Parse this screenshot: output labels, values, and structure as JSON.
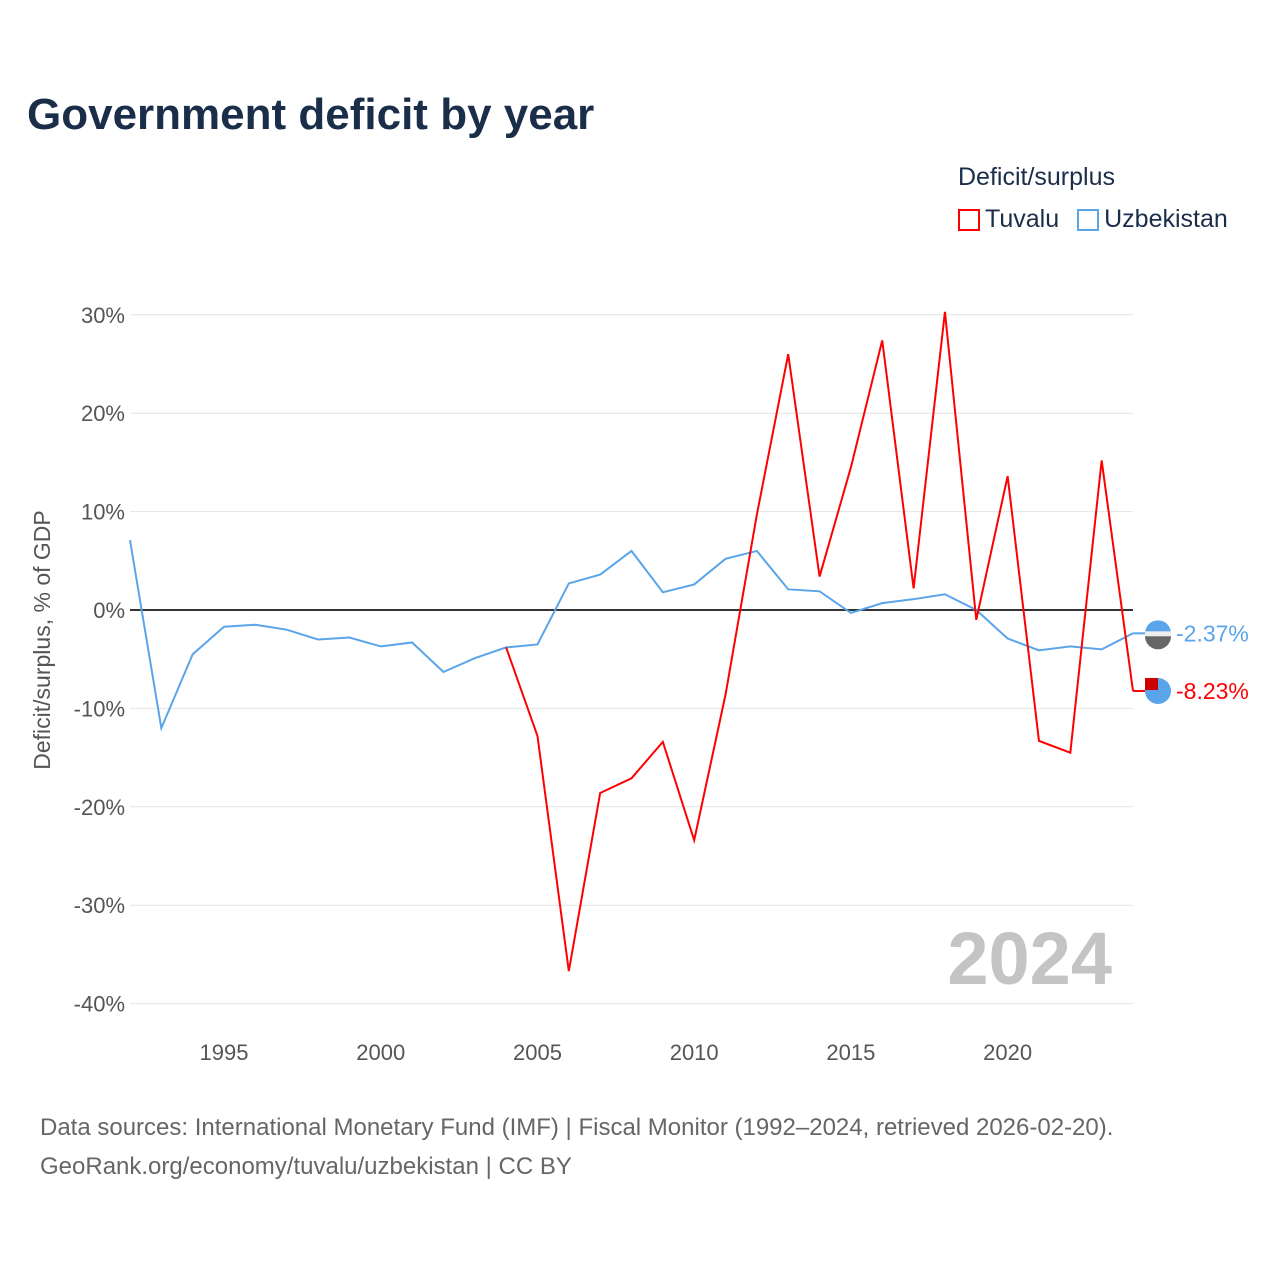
{
  "title": "Government deficit by year",
  "legend": {
    "title": "Deficit/surplus",
    "items": [
      {
        "label": "Tuvalu",
        "color": "#ff0000"
      },
      {
        "label": "Uzbekistan",
        "color": "#5aa5ea"
      }
    ]
  },
  "watermark_year": "2024",
  "source_lines": [
    "Data sources: International Monetary Fund (IMF) | Fiscal Monitor (1992–2024, retrieved 2026-02-20).",
    "GeoRank.org/economy/tuvalu/uzbekistan | CC BY"
  ],
  "chart_data": {
    "type": "line",
    "title": "Government deficit by year",
    "xlabel": "",
    "ylabel": "Deficit/surplus, % of GDP",
    "xlim": [
      1992,
      2024
    ],
    "ylim": [
      -40,
      30
    ],
    "x_ticks": [
      1995,
      2000,
      2005,
      2010,
      2015,
      2020
    ],
    "y_ticks": [
      30,
      20,
      10,
      0,
      -10,
      -20,
      -30,
      -40
    ],
    "y_tick_labels": [
      "30%",
      "20%",
      "10%",
      "0%",
      "-10%",
      "-20%",
      "-30%",
      "-40%"
    ],
    "grid": true,
    "legend_position": "top-right",
    "series": [
      {
        "name": "Uzbekistan",
        "color": "#5aa5ea",
        "end_label": "-2.37%",
        "x": [
          1992,
          1993,
          1994,
          1995,
          1996,
          1997,
          1998,
          1999,
          2000,
          2001,
          2002,
          2003,
          2004,
          2005,
          2006,
          2007,
          2008,
          2009,
          2010,
          2011,
          2012,
          2013,
          2014,
          2015,
          2016,
          2017,
          2018,
          2019,
          2020,
          2021,
          2022,
          2023,
          2024
        ],
        "values": [
          7.1,
          -12.0,
          -4.5,
          -1.7,
          -1.5,
          -2.0,
          -3.0,
          -2.8,
          -3.7,
          -3.3,
          -6.3,
          -4.9,
          -3.8,
          -3.5,
          2.7,
          3.6,
          6.0,
          1.8,
          2.6,
          5.2,
          6.0,
          2.1,
          1.9,
          -0.3,
          0.7,
          1.1,
          1.6,
          0.0,
          -2.9,
          -4.1,
          -3.7,
          -4.0,
          -2.37
        ]
      },
      {
        "name": "Tuvalu",
        "color": "#ff0000",
        "end_label": "-8.23%",
        "x": [
          2004,
          2005,
          2006,
          2007,
          2008,
          2009,
          2010,
          2011,
          2012,
          2013,
          2014,
          2015,
          2016,
          2017,
          2018,
          2019,
          2020,
          2021,
          2022,
          2023,
          2024
        ],
        "values": [
          -3.8,
          -12.8,
          -36.7,
          -18.6,
          -17.1,
          -13.4,
          -23.4,
          -8.6,
          9.7,
          26.0,
          3.4,
          14.5,
          27.4,
          2.2,
          30.3,
          -1.0,
          13.6,
          -13.3,
          -14.5,
          15.2,
          -8.23
        ]
      }
    ]
  }
}
